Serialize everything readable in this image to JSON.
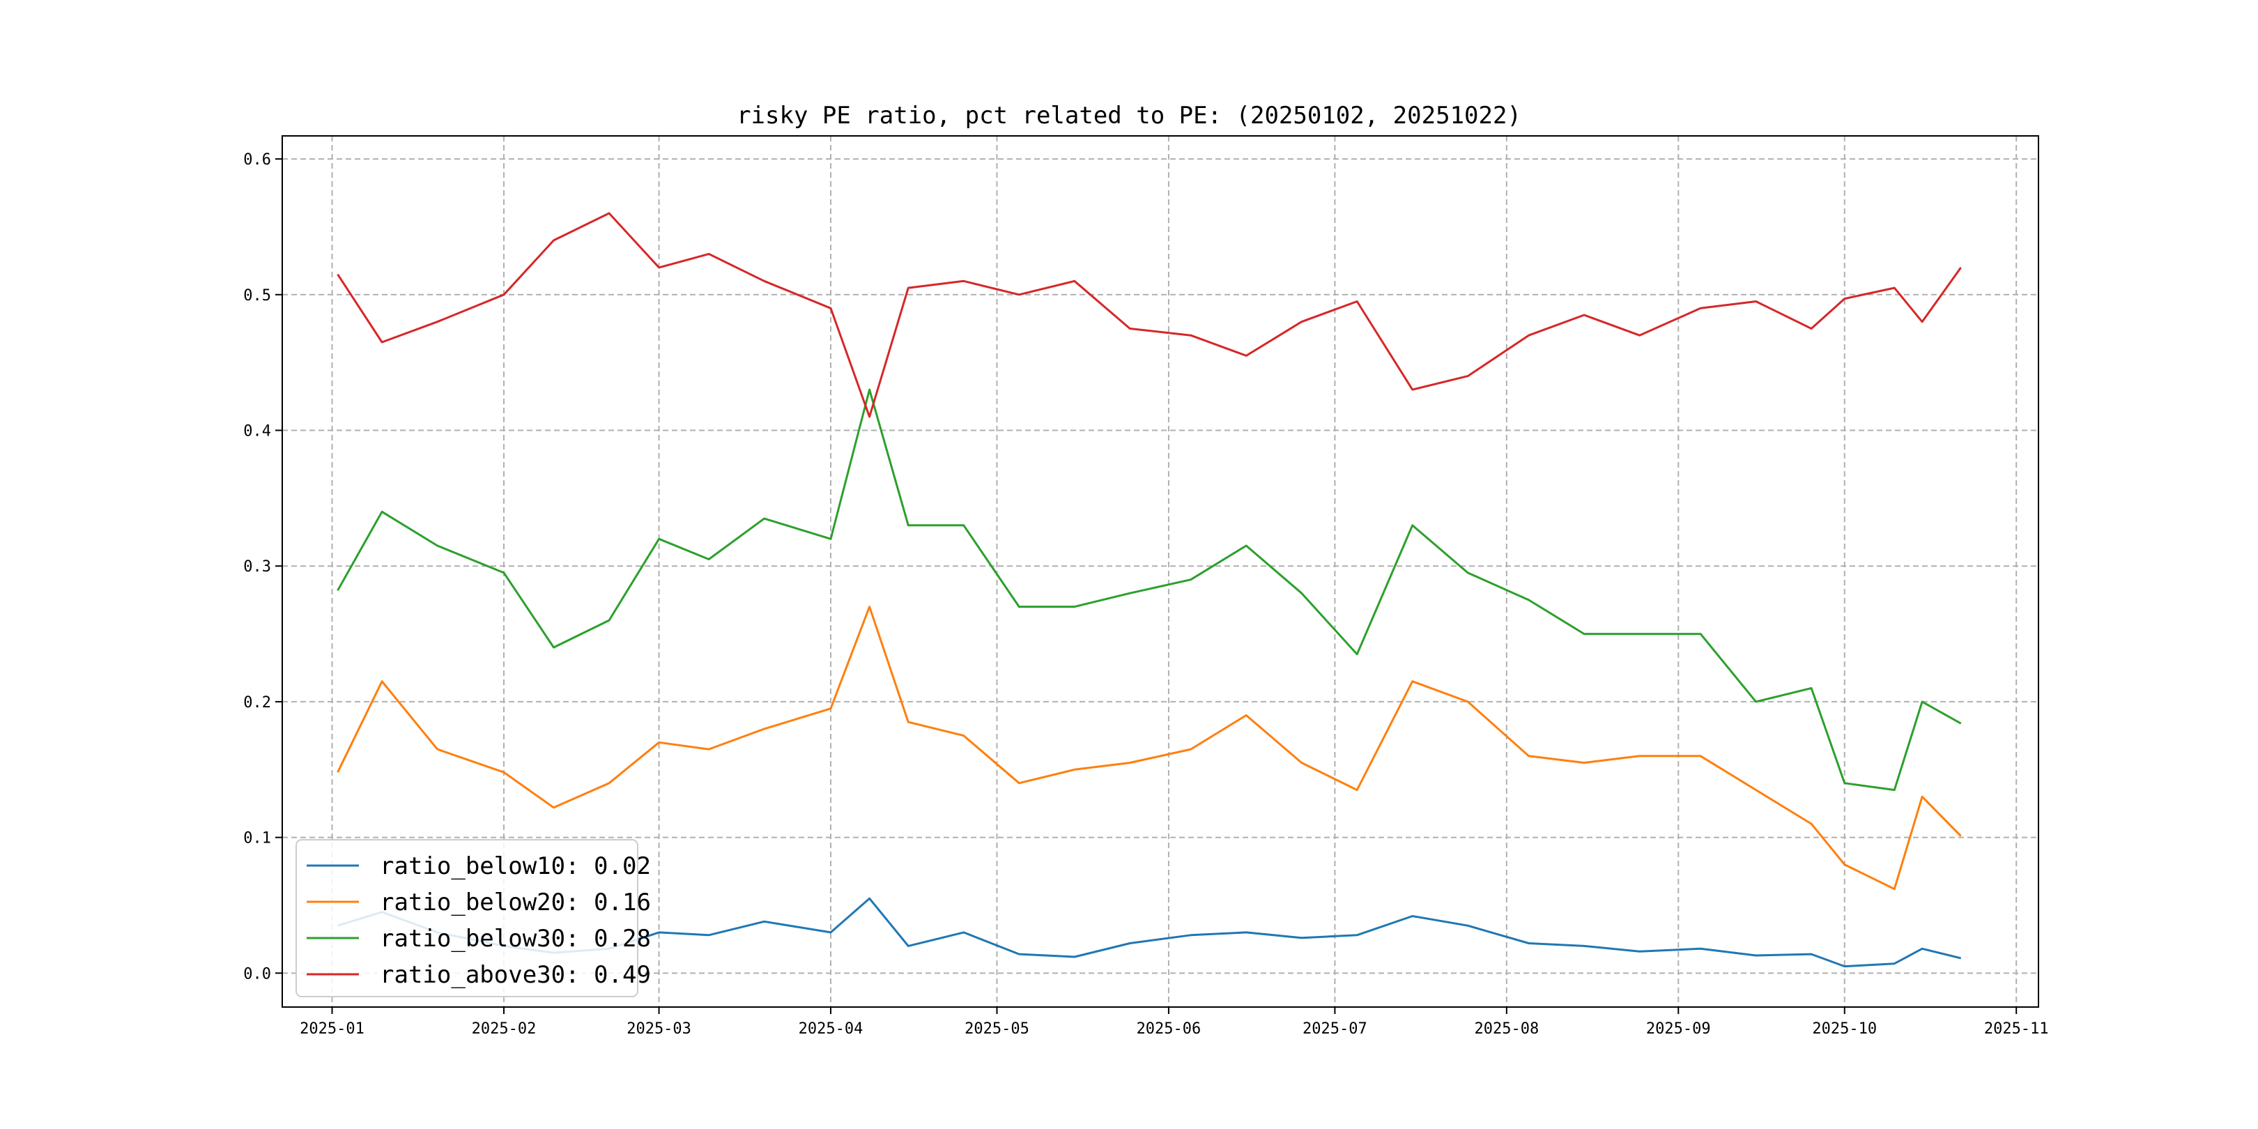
{
  "chart_data": {
    "type": "line",
    "title": "risky PE ratio, pct related to PE: (20250102, 20251022)",
    "xlabel": "",
    "ylabel": "",
    "x_ticks": [
      "2025-01",
      "2025-02",
      "2025-03",
      "2025-04",
      "2025-05",
      "2025-06",
      "2025-07",
      "2025-08",
      "2025-09",
      "2025-10",
      "2025-11"
    ],
    "y_ticks": [
      "0.0",
      "0.1",
      "0.2",
      "0.3",
      "0.4",
      "0.5",
      "0.6"
    ],
    "xlim": [
      "2024-12-23",
      "2025-11-05"
    ],
    "ylim": [
      -0.025,
      0.617
    ],
    "grid": true,
    "legend_position": "lower-left",
    "x": [
      "2025-01-02",
      "2025-01-10",
      "2025-01-20",
      "2025-02-01",
      "2025-02-10",
      "2025-02-20",
      "2025-03-01",
      "2025-03-10",
      "2025-03-20",
      "2025-04-01",
      "2025-04-08",
      "2025-04-15",
      "2025-04-25",
      "2025-05-05",
      "2025-05-15",
      "2025-05-25",
      "2025-06-05",
      "2025-06-15",
      "2025-06-25",
      "2025-07-05",
      "2025-07-15",
      "2025-07-25",
      "2025-08-05",
      "2025-08-15",
      "2025-08-25",
      "2025-09-05",
      "2025-09-15",
      "2025-09-25",
      "2025-10-01",
      "2025-10-10",
      "2025-10-15",
      "2025-10-22"
    ],
    "series": [
      {
        "name": "ratio_below10",
        "legend_label": "ratio_below10: 0.02",
        "color": "#1f77b4",
        "values": [
          0.035,
          0.045,
          0.03,
          0.02,
          0.015,
          0.018,
          0.03,
          0.028,
          0.038,
          0.03,
          0.055,
          0.02,
          0.03,
          0.014,
          0.012,
          0.022,
          0.028,
          0.03,
          0.026,
          0.028,
          0.042,
          0.035,
          0.022,
          0.02,
          0.016,
          0.018,
          0.013,
          0.014,
          0.005,
          0.007,
          0.018,
          0.011
        ]
      },
      {
        "name": "ratio_below20",
        "legend_label": "ratio_below20: 0.16",
        "color": "#ff7f0e",
        "values": [
          0.148,
          0.215,
          0.165,
          0.148,
          0.122,
          0.14,
          0.17,
          0.165,
          0.18,
          0.195,
          0.27,
          0.185,
          0.175,
          0.14,
          0.15,
          0.155,
          0.165,
          0.19,
          0.155,
          0.135,
          0.215,
          0.2,
          0.16,
          0.155,
          0.16,
          0.16,
          0.135,
          0.11,
          0.08,
          0.062,
          0.13,
          0.101
        ]
      },
      {
        "name": "ratio_below30",
        "legend_label": "ratio_below30: 0.28",
        "color": "#2ca02c",
        "values": [
          0.282,
          0.34,
          0.315,
          0.295,
          0.24,
          0.26,
          0.32,
          0.305,
          0.335,
          0.32,
          0.43,
          0.33,
          0.33,
          0.27,
          0.27,
          0.28,
          0.29,
          0.315,
          0.28,
          0.235,
          0.33,
          0.295,
          0.275,
          0.25,
          0.25,
          0.25,
          0.2,
          0.21,
          0.14,
          0.135,
          0.2,
          0.184
        ]
      },
      {
        "name": "ratio_above30",
        "legend_label": "ratio_above30: 0.49",
        "color": "#d62728",
        "values": [
          0.515,
          0.465,
          0.48,
          0.5,
          0.54,
          0.56,
          0.52,
          0.53,
          0.51,
          0.49,
          0.41,
          0.505,
          0.51,
          0.5,
          0.51,
          0.475,
          0.47,
          0.455,
          0.48,
          0.495,
          0.43,
          0.44,
          0.47,
          0.485,
          0.47,
          0.49,
          0.495,
          0.475,
          0.497,
          0.505,
          0.48,
          0.52
        ]
      }
    ]
  }
}
